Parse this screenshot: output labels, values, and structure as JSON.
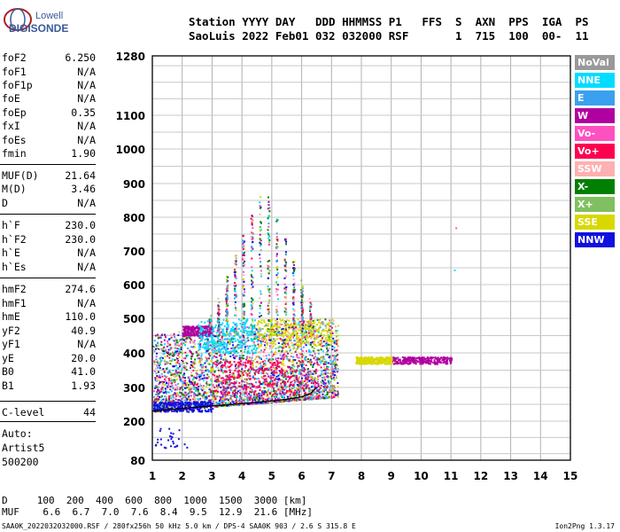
{
  "logo": {
    "line1": "Lowell",
    "line2": "DIGISONDE"
  },
  "header": {
    "line1": "Station YYYY DAY   DDD HHMMSS P1   FFS  S  AXN  PPS  IGA  PS",
    "line2": "SaoLuis 2022 Feb01 032 032000 RSF       1  715  100  00-  11"
  },
  "params": [
    {
      "key": "foF2",
      "value": "6.250"
    },
    {
      "key": "foF1",
      "value": "N/A"
    },
    {
      "key": "foF1p",
      "value": "N/A"
    },
    {
      "key": "foE",
      "value": "N/A"
    },
    {
      "key": "foEp",
      "value": "0.35"
    },
    {
      "key": "fxI",
      "value": "N/A"
    },
    {
      "key": "foEs",
      "value": "N/A"
    },
    {
      "key": "fmin",
      "value": "1.90"
    },
    {
      "key": "MUF(D)",
      "value": "21.64"
    },
    {
      "key": "M(D)",
      "value": "3.46"
    },
    {
      "key": "D",
      "value": "N/A"
    },
    {
      "key": "h`F",
      "value": "230.0"
    },
    {
      "key": "h`F2",
      "value": "230.0"
    },
    {
      "key": "h`E",
      "value": "N/A"
    },
    {
      "key": "h`Es",
      "value": "N/A"
    },
    {
      "key": "hmF2",
      "value": "274.6"
    },
    {
      "key": "hmF1",
      "value": "N/A"
    },
    {
      "key": "hmE",
      "value": "110.0"
    },
    {
      "key": "yF2",
      "value": "40.9"
    },
    {
      "key": "yF1",
      "value": "N/A"
    },
    {
      "key": "yE",
      "value": "20.0"
    },
    {
      "key": "B0",
      "value": "41.0"
    },
    {
      "key": "B1",
      "value": "1.93"
    },
    {
      "key": "C-level",
      "value": "44"
    }
  ],
  "auto": {
    "line1": "Auto:",
    "line2": "Artist5",
    "line3": "500200"
  },
  "legend": [
    {
      "label": "NoVal",
      "color": "#999999"
    },
    {
      "label": "NNE",
      "color": "#00dcff"
    },
    {
      "label": "E",
      "color": "#3aa0f0"
    },
    {
      "label": "W",
      "color": "#b000a0"
    },
    {
      "label": "Vo-",
      "color": "#ff50c0"
    },
    {
      "label": "Vo+",
      "color": "#ff0050"
    },
    {
      "label": "SSW",
      "color": "#ffb0b0"
    },
    {
      "label": "X-",
      "color": "#008000"
    },
    {
      "label": "X+",
      "color": "#80c060"
    },
    {
      "label": "SSE",
      "color": "#d8d800"
    },
    {
      "label": "NNW",
      "color": "#1010e0"
    }
  ],
  "footer": {
    "line1": "D     100  200  400  600  800  1000  1500  3000 [km]",
    "line2": "MUF    6.6  6.7  7.0  7.6  8.4  9.5  12.9  21.6 [MHz]",
    "line3": "SAA0K_2022032032000.RSF / 280fx256h 50 kHz 5.0 km / DPS-4 SAA0K 903 / 2.6 S 315.8 E",
    "line4": "Ion2Png 1.3.17"
  },
  "chart_data": {
    "type": "scatter",
    "x_ticks": [
      1,
      2,
      3,
      4,
      5,
      6,
      7,
      8,
      9,
      10,
      11,
      12,
      13,
      14,
      15
    ],
    "y_ticks": [
      80,
      200,
      300,
      400,
      500,
      600,
      700,
      800,
      900,
      1000,
      1100,
      1280
    ],
    "xlim": [
      1,
      15
    ],
    "ylim": [
      80,
      1280
    ],
    "y_scale": "non-linear (ionogram height scale)",
    "grid": true,
    "trace_profile": {
      "freq_mhz": [
        1.0,
        2.0,
        3.0,
        4.0,
        5.0,
        5.5,
        6.0,
        6.3,
        6.5
      ],
      "height_km": [
        230,
        238,
        245,
        252,
        260,
        265,
        272,
        282,
        300
      ]
    },
    "clusters": [
      {
        "series": "W",
        "x": [
          2.0,
          3.0
        ],
        "y": [
          450,
          480
        ]
      },
      {
        "series": "Vo+",
        "x": [
          3.0,
          6.5
        ],
        "y": [
          280,
          380
        ]
      },
      {
        "series": "NNE",
        "x": [
          2.5,
          4.5
        ],
        "y": [
          400,
          500
        ]
      },
      {
        "series": "SSE",
        "x": [
          4.5,
          7.0
        ],
        "y": [
          420,
          500
        ]
      },
      {
        "series": "W",
        "x": [
          9.0,
          11.0
        ],
        "y": [
          370,
          390
        ]
      },
      {
        "series": "SSE",
        "x": [
          7.8,
          9.0
        ],
        "y": [
          370,
          390
        ]
      },
      {
        "series": "NNW",
        "x": [
          1.0,
          3.0
        ],
        "y": [
          230,
          260
        ]
      }
    ]
  }
}
